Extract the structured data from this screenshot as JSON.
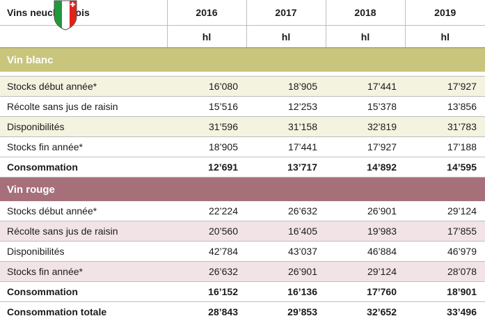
{
  "header": {
    "title": "Vins neuchâtelois",
    "years": [
      "2016",
      "2017",
      "2018",
      "2019"
    ],
    "units": [
      "hl",
      "hl",
      "hl",
      "hl"
    ]
  },
  "sections": [
    {
      "name": "Vin blanc",
      "rows": [
        {
          "label": "Stocks début année*",
          "values": [
            "16’080",
            "18’905",
            "17’441",
            "17’927"
          ]
        },
        {
          "label": "Récolte sans jus de raisin",
          "values": [
            "15’516",
            "12’253",
            "15’378",
            "13’856"
          ]
        },
        {
          "label": "Disponibilités",
          "values": [
            "31’596",
            "31’158",
            "32’819",
            "31’783"
          ]
        },
        {
          "label": "Stocks fin année*",
          "values": [
            "18’905",
            "17’441",
            "17’927",
            "17’188"
          ]
        },
        {
          "label": "Consommation",
          "values": [
            "12’691",
            "13’717",
            "14’892",
            "14’595"
          ]
        }
      ]
    },
    {
      "name": "Vin rouge",
      "rows": [
        {
          "label": "Stocks début année*",
          "values": [
            "22’224",
            "26’632",
            "26’901",
            "29’124"
          ]
        },
        {
          "label": "Récolte sans jus de raisin",
          "values": [
            "20’560",
            "16’405",
            "19’983",
            "17’855"
          ]
        },
        {
          "label": "Disponibilités",
          "values": [
            "42’784",
            "43’037",
            "46’884",
            "46’979"
          ]
        },
        {
          "label": "Stocks fin année*",
          "values": [
            "26’632",
            "26’901",
            "29’124",
            "28’078"
          ]
        },
        {
          "label": "Consommation",
          "values": [
            "16’152",
            "16’136",
            "17’760",
            "18’901"
          ]
        }
      ]
    }
  ],
  "total": {
    "label": "Consommation totale",
    "values": [
      "28’843",
      "29’853",
      "32’652",
      "33’496"
    ]
  }
}
